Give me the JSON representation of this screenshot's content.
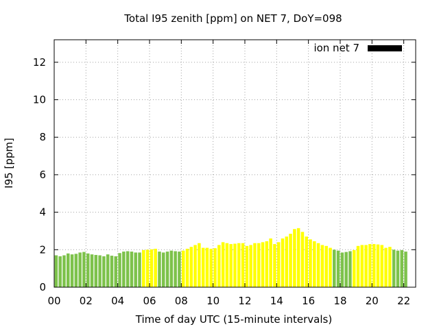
{
  "chart_data": {
    "type": "bar",
    "title": "Total I95 zenith [ppm] on NET 7, DoY=098",
    "xlabel": "Time of day UTC (15-minute intervals)",
    "ylabel": "I95 [ppm]",
    "xlim": [
      0,
      22.75
    ],
    "ylim": [
      0,
      13.2
    ],
    "x_ticks": [
      "00",
      "02",
      "04",
      "06",
      "08",
      "10",
      "12",
      "14",
      "16",
      "18",
      "20",
      "22"
    ],
    "y_ticks": [
      "0",
      "2",
      "4",
      "6",
      "8",
      "10",
      "12"
    ],
    "grid": true,
    "legend": {
      "label": "ion net 7",
      "color": "#000000",
      "position": "top-right"
    },
    "colors": {
      "green": "#7dc24b",
      "yellow": "#ffff00"
    },
    "bar_interval_hours": 0.25,
    "values": [
      1.7,
      1.65,
      1.7,
      1.8,
      1.75,
      1.78,
      1.85,
      1.88,
      1.8,
      1.75,
      1.72,
      1.7,
      1.65,
      1.75,
      1.68,
      1.65,
      1.82,
      1.9,
      1.92,
      1.9,
      1.85,
      1.85,
      1.98,
      2.0,
      2.02,
      2.05,
      1.9,
      1.85,
      1.9,
      1.95,
      1.92,
      1.9,
      1.95,
      2.05,
      2.15,
      2.25,
      2.35,
      2.1,
      2.1,
      2.05,
      2.08,
      2.25,
      2.4,
      2.35,
      2.3,
      2.32,
      2.35,
      2.35,
      2.2,
      2.25,
      2.35,
      2.35,
      2.4,
      2.45,
      2.6,
      2.3,
      2.4,
      2.6,
      2.7,
      2.85,
      3.1,
      3.15,
      2.95,
      2.7,
      2.55,
      2.45,
      2.35,
      2.25,
      2.2,
      2.1,
      2.0,
      1.95,
      1.85,
      1.88,
      1.92,
      1.98,
      2.2,
      2.25,
      2.25,
      2.3,
      2.3,
      2.28,
      2.25,
      2.1,
      2.15,
      2.0,
      1.95,
      1.98,
      1.9
    ],
    "bar_colors": [
      "green",
      "green",
      "green",
      "green",
      "green",
      "green",
      "green",
      "green",
      "green",
      "green",
      "green",
      "green",
      "green",
      "green",
      "green",
      "green",
      "green",
      "green",
      "green",
      "green",
      "green",
      "green",
      "yellow",
      "yellow",
      "yellow",
      "yellow",
      "green",
      "green",
      "green",
      "green",
      "green",
      "green",
      "yellow",
      "yellow",
      "yellow",
      "yellow",
      "yellow",
      "yellow",
      "yellow",
      "yellow",
      "yellow",
      "yellow",
      "yellow",
      "yellow",
      "yellow",
      "yellow",
      "yellow",
      "yellow",
      "yellow",
      "yellow",
      "yellow",
      "yellow",
      "yellow",
      "yellow",
      "yellow",
      "yellow",
      "yellow",
      "yellow",
      "yellow",
      "yellow",
      "yellow",
      "yellow",
      "yellow",
      "yellow",
      "yellow",
      "yellow",
      "yellow",
      "yellow",
      "yellow",
      "yellow",
      "green",
      "green",
      "green",
      "green",
      "green",
      "yellow",
      "yellow",
      "yellow",
      "yellow",
      "yellow",
      "yellow",
      "yellow",
      "yellow",
      "yellow",
      "yellow",
      "green",
      "green",
      "green",
      "green"
    ]
  }
}
